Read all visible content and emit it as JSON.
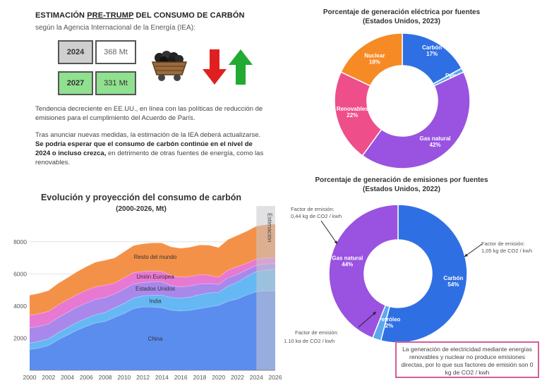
{
  "infographic": {
    "headline_pre": "ESTIMACIÓN ",
    "headline_u": "PRE-TRUMP",
    "headline_post": " DEL CONSUMO DE CARBÓN",
    "subtitle": "según la Agencia Internacional de la Energía (IEA):",
    "estimates": [
      {
        "year": "2024",
        "value": "368 Mt"
      },
      {
        "year": "2027",
        "value": "331 Mt"
      }
    ],
    "icons": [
      "coal-cart-icon",
      "arrow-down-icon",
      "arrow-up-icon"
    ],
    "colors": {
      "year_2024_bg": "#cfcfcf",
      "year_2027_bg": "#8fe08f",
      "arrow_down": "#e02020",
      "arrow_up": "#22aa33"
    },
    "paragraph1": "Tendencia decreciente en EE.UU., en línea con las políticas de reducción de emisiones para el cumplimiento del Acuerdo de París.",
    "paragraph2_normal_a": "Tras anunciar nuevas medidas, la estimación de la IEA deberá actualizarse. ",
    "paragraph2_bold": "Se podría esperar que el consumo de carbón continúe en el nivel de 2024 o incluso crezca,",
    "paragraph2_normal_b": " en detrimento de otras fuentes de energía, como las renovables.",
    "note": "La generación de electricidad mediante energías renovables y nuclear no produce emisiones directas, por lo que sus factores de emisión son 0 kg de CO2 / kwh"
  },
  "chart_data": [
    {
      "type": "area",
      "title": "Evolución y proyección del consumo de carbón",
      "subtitle": "(2000-2026, Mt)",
      "x": [
        2000,
        2001,
        2002,
        2003,
        2004,
        2005,
        2006,
        2007,
        2008,
        2009,
        2010,
        2011,
        2012,
        2013,
        2014,
        2015,
        2016,
        2017,
        2018,
        2019,
        2020,
        2021,
        2022,
        2023,
        2024,
        2025,
        2026
      ],
      "xticks": [
        "2000",
        "2002",
        "2004",
        "2006",
        "2008",
        "2010",
        "2012",
        "2014",
        "2016",
        "2018",
        "2020",
        "2022",
        "2024",
        "2026"
      ],
      "yticks": [
        "2000",
        "4000",
        "6000",
        "8000"
      ],
      "ylim": [
        0,
        9000
      ],
      "stacked": true,
      "series": [
        {
          "name": "China",
          "color": "#5b8def",
          "values": [
            1300,
            1400,
            1550,
            1900,
            2200,
            2500,
            2750,
            2950,
            3050,
            3300,
            3550,
            3850,
            3950,
            3950,
            3900,
            3750,
            3700,
            3750,
            3850,
            3950,
            4050,
            4300,
            4450,
            4700,
            4900,
            4950,
            4950
          ]
        },
        {
          "name": "India",
          "color": "#66b8f4",
          "values": [
            400,
            410,
            420,
            440,
            460,
            480,
            500,
            520,
            560,
            600,
            620,
            660,
            700,
            730,
            780,
            790,
            800,
            820,
            870,
            880,
            820,
            950,
            1050,
            1150,
            1250,
            1300,
            1350
          ]
        },
        {
          "name": "Estados Unidos",
          "color": "#a988ec",
          "values": [
            950,
            930,
            930,
            940,
            950,
            960,
            950,
            960,
            930,
            860,
            900,
            880,
            820,
            830,
            830,
            740,
            690,
            680,
            660,
            580,
            480,
            520,
            480,
            420,
            400,
            380,
            370
          ]
        },
        {
          "name": "Unión Europea",
          "color": "#e879d2",
          "values": [
            780,
            790,
            780,
            800,
            790,
            780,
            790,
            790,
            760,
            680,
            700,
            700,
            690,
            680,
            650,
            640,
            620,
            600,
            580,
            520,
            450,
            480,
            480,
            400,
            380,
            370,
            360
          ]
        },
        {
          "name": "Resto del mundo",
          "color": "#f49148",
          "values": [
            1250,
            1270,
            1290,
            1330,
            1370,
            1420,
            1470,
            1520,
            1560,
            1560,
            1620,
            1680,
            1720,
            1750,
            1770,
            1770,
            1790,
            1820,
            1850,
            1860,
            1850,
            1900,
            1950,
            2000,
            2050,
            2070,
            2080
          ]
        }
      ],
      "annotation": "Estimación",
      "annotation_range": [
        2024,
        2026
      ]
    },
    {
      "type": "pie",
      "title": "Porcentaje de generación eléctrica por fuentes",
      "subtitle": "(Estados Unidos, 2023)",
      "slices": [
        {
          "label": "Carbón",
          "pct": "17%",
          "value": 17,
          "color": "#2f6fe4"
        },
        {
          "label": "Petróleo",
          "pct": "1%",
          "value": 1,
          "color": "#5aa8f0"
        },
        {
          "label": "Gas natural",
          "pct": "42%",
          "value": 42,
          "color": "#9a52e0"
        },
        {
          "label": "Renovables",
          "pct": "22%",
          "value": 22,
          "color": "#ee4f8a"
        },
        {
          "label": "Nuclear",
          "pct": "18%",
          "value": 18,
          "color": "#f68a24"
        }
      ]
    },
    {
      "type": "pie",
      "title": "Porcentaje de generación de emisiones por fuentes",
      "subtitle": "(Estados Unidos, 2022)",
      "slices": [
        {
          "label": "Carbón",
          "pct": "54%",
          "value": 54,
          "color": "#2f6fe4"
        },
        {
          "label": "Petróleo",
          "pct": "2%",
          "value": 2,
          "color": "#5aa8f0"
        },
        {
          "label": "Gas natural",
          "pct": "44%",
          "value": 44,
          "color": "#9a52e0"
        }
      ],
      "annotations": [
        {
          "line1": "Factor de emisión:",
          "line2": "0,44 kg de CO2 / kwh"
        },
        {
          "line1": "Factor de emisión:",
          "line2": "1,05 kg de CO2 / kwh"
        },
        {
          "line1": "Factor de emisión:",
          "line2": "1,10 kg de CO2 / kwh"
        }
      ]
    }
  ]
}
